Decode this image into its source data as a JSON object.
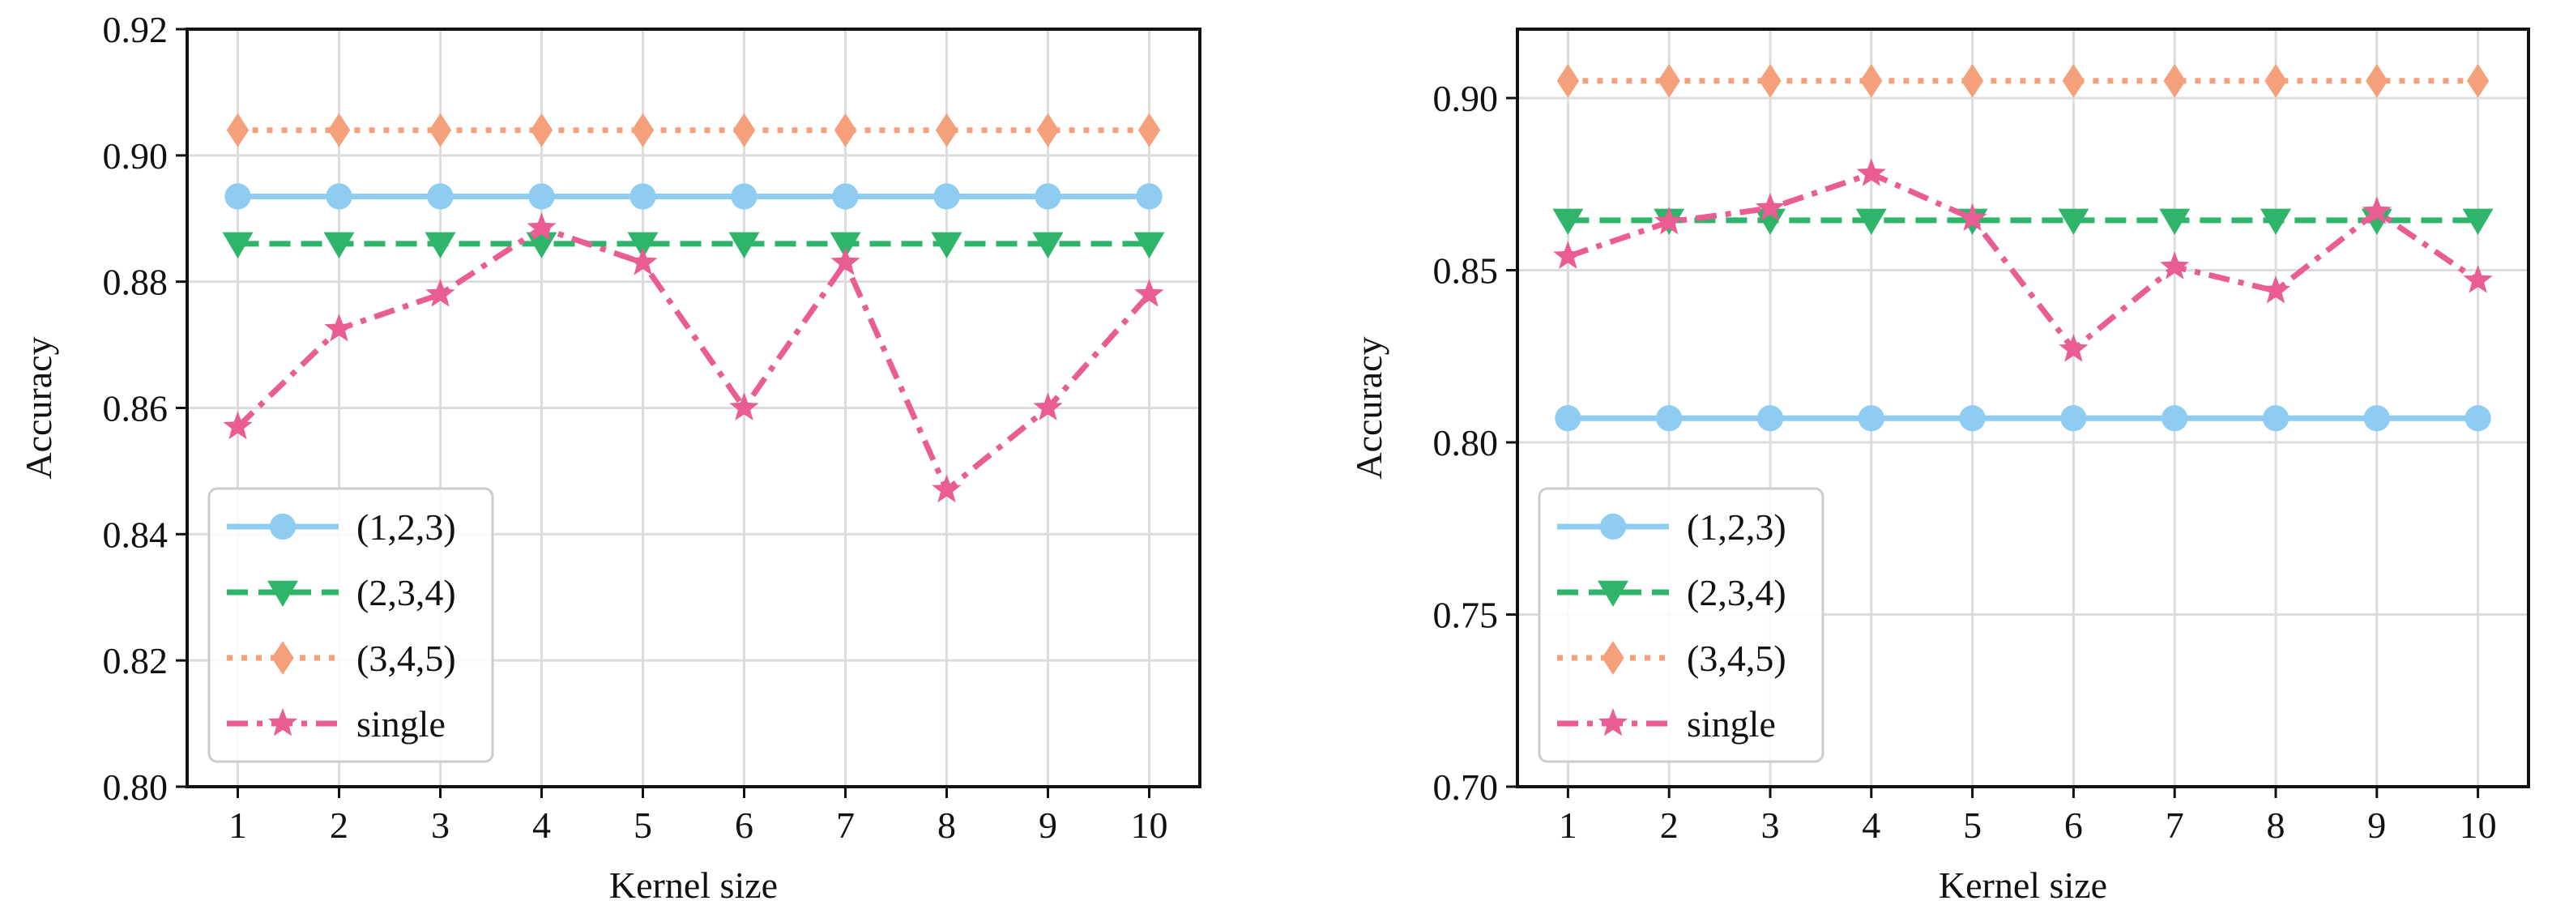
{
  "chart_data": [
    {
      "type": "line",
      "xlabel": "Kernel size",
      "ylabel": "Accuracy",
      "xlim": [
        0.5,
        10.5
      ],
      "ylim": [
        0.8,
        0.92
      ],
      "x": [
        1,
        2,
        3,
        4,
        5,
        6,
        7,
        8,
        9,
        10
      ],
      "xticks": [
        "1",
        "2",
        "3",
        "4",
        "5",
        "6",
        "7",
        "8",
        "9",
        "10"
      ],
      "yticks": [
        0.8,
        0.82,
        0.84,
        0.86,
        0.88,
        0.9,
        0.92
      ],
      "ytick_labels": [
        "0.80",
        "0.82",
        "0.84",
        "0.86",
        "0.88",
        "0.90",
        "0.92"
      ],
      "grid": true,
      "legend_position": "bottom-left",
      "series": [
        {
          "name": "(1,2,3)",
          "values": [
            0.8935,
            0.8935,
            0.8935,
            0.8935,
            0.8935,
            0.8935,
            0.8935,
            0.8935,
            0.8935,
            0.8935
          ],
          "color": "#8ecdf1",
          "marker": "circle",
          "linestyle": "solid"
        },
        {
          "name": "(2,3,4)",
          "values": [
            0.886,
            0.886,
            0.886,
            0.886,
            0.886,
            0.886,
            0.886,
            0.886,
            0.886,
            0.886
          ],
          "color": "#2fb56a",
          "marker": "triangle-down",
          "linestyle": "dashed"
        },
        {
          "name": "(3,4,5)",
          "values": [
            0.904,
            0.904,
            0.904,
            0.904,
            0.904,
            0.904,
            0.904,
            0.904,
            0.904,
            0.904
          ],
          "color": "#f4a07a",
          "marker": "diamond",
          "linestyle": "dotted"
        },
        {
          "name": "single",
          "values": [
            0.857,
            0.8725,
            0.878,
            0.8885,
            0.883,
            0.86,
            0.883,
            0.847,
            0.86,
            0.878
          ],
          "color": "#ea5d93",
          "marker": "star",
          "linestyle": "dashdot"
        }
      ]
    },
    {
      "type": "line",
      "xlabel": "Kernel size",
      "ylabel": "Accuracy",
      "xlim": [
        0.5,
        10.5
      ],
      "ylim": [
        0.7,
        0.92
      ],
      "x": [
        1,
        2,
        3,
        4,
        5,
        6,
        7,
        8,
        9,
        10
      ],
      "xticks": [
        "1",
        "2",
        "3",
        "4",
        "5",
        "6",
        "7",
        "8",
        "9",
        "10"
      ],
      "yticks": [
        0.7,
        0.75,
        0.8,
        0.85,
        0.9
      ],
      "ytick_labels": [
        "0.70",
        "0.75",
        "0.80",
        "0.85",
        "0.90"
      ],
      "grid": true,
      "legend_position": "bottom-left",
      "series": [
        {
          "name": "(1,2,3)",
          "values": [
            0.807,
            0.807,
            0.807,
            0.807,
            0.807,
            0.807,
            0.807,
            0.807,
            0.807,
            0.807
          ],
          "color": "#8ecdf1",
          "marker": "circle",
          "linestyle": "solid"
        },
        {
          "name": "(2,3,4)",
          "values": [
            0.8645,
            0.8645,
            0.8645,
            0.8645,
            0.8645,
            0.8645,
            0.8645,
            0.8645,
            0.8645,
            0.8645
          ],
          "color": "#2fb56a",
          "marker": "triangle-down",
          "linestyle": "dashed"
        },
        {
          "name": "(3,4,5)",
          "values": [
            0.905,
            0.905,
            0.905,
            0.905,
            0.905,
            0.905,
            0.905,
            0.905,
            0.905,
            0.905
          ],
          "color": "#f4a07a",
          "marker": "diamond",
          "linestyle": "dotted"
        },
        {
          "name": "single",
          "values": [
            0.854,
            0.864,
            0.868,
            0.878,
            0.865,
            0.827,
            0.851,
            0.844,
            0.867,
            0.847
          ],
          "color": "#ea5d93",
          "marker": "star",
          "linestyle": "dashdot"
        }
      ]
    }
  ]
}
